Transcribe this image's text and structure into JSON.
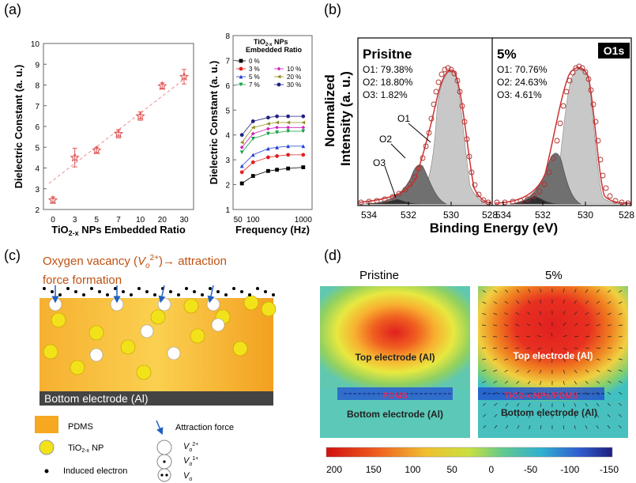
{
  "panels": {
    "a": {
      "label": "(a)",
      "left": {
        "ylabel": "Dielectric Constant (a. u.)",
        "xlabel_main": "TiO",
        "xlabel_sub": "2-x",
        "xlabel_rest": " NPs Embedded Ratio",
        "yticks": [
          "2",
          "3",
          "4",
          "5",
          "6",
          "7",
          "8",
          "9",
          "10"
        ],
        "xticks": [
          "0",
          "3",
          "5",
          "7",
          "10",
          "20",
          "30"
        ]
      },
      "right": {
        "ylabel": "Dielectric Constant (a. u.)",
        "xlabel": "Frequency (Hz)",
        "yticks": [
          "1",
          "2",
          "3",
          "4",
          "5",
          "6",
          "7",
          "8"
        ],
        "xticks": [
          "50",
          "100",
          "1000"
        ],
        "legend_title_1": "TiO",
        "legend_title_sub": "2-x",
        "legend_title_2": " NPs",
        "legend_title_3": "Embedded Ratio"
      }
    },
    "b": {
      "label": "(b)",
      "ylabel_1": "Normalized",
      "ylabel_2": "Intensity (a. u.)",
      "xlabel": "Binding Energy (eV)",
      "badge": "O1s",
      "left_title": "Prisitne",
      "left_lines": [
        "O1: 79.38%",
        "O2: 18.80%",
        "O3: 1.82%"
      ],
      "right_title": "5%",
      "right_lines": [
        "O1: 70.76%",
        "O2: 24.63%",
        "O3: 4.61%"
      ],
      "annotations": [
        "O1",
        "O2",
        "O3"
      ],
      "xticks_left": [
        "534",
        "532",
        "530",
        "528"
      ],
      "xticks_right": [
        "534",
        "532",
        "530",
        "528"
      ]
    },
    "c": {
      "label": "(c)",
      "title_1": "Oxygen vacancy (",
      "title_v": "V",
      "title_o": "o",
      "title_sup": "2+",
      "title_2": ")→ attraction",
      "title_3": "force formation",
      "bottom": "Bottom electrode (Al)",
      "legend_pdms": "PDMS",
      "legend_np": "TiO",
      "legend_np_sub": "2-x",
      "legend_np_rest": " NP",
      "legend_electron": "Induced electron",
      "legend_force": "Attraction force",
      "legend_v2": "2+",
      "legend_v1": "1+",
      "legend_v0": ""
    },
    "d": {
      "label": "(d)",
      "title_left": "Pristine",
      "title_right": "5%",
      "top_left": "Top electrode (Al)",
      "top_right": "Top electrode (Al)",
      "mid_left": "PDMS",
      "mid_right": "TiO2-x NPs/PDMS",
      "bottom_left": "Bottom electrode (Al)",
      "bottom_right": "Bottom electrode (Al)",
      "colorbar_ticks": [
        "200",
        "150",
        "100",
        "50",
        "0",
        "-50",
        "-100",
        "-150"
      ]
    }
  },
  "chart_data": [
    {
      "type": "scatter",
      "panel": "a-left",
      "xlabel": "TiO2-x NPs Embedded Ratio",
      "ylabel": "Dielectric Constant (a. u.)",
      "categories": [
        "0",
        "3",
        "5",
        "7",
        "10",
        "20",
        "30"
      ],
      "values": [
        2.45,
        4.5,
        4.85,
        5.65,
        6.5,
        7.95,
        8.4
      ],
      "errors": [
        0.15,
        0.45,
        0.15,
        0.2,
        0.2,
        0.15,
        0.35
      ],
      "ylim": [
        2,
        10
      ],
      "color": "#e05555"
    },
    {
      "type": "line",
      "panel": "a-right",
      "xlabel": "Frequency (Hz)",
      "ylabel": "Dielectric Constant (a. u.)",
      "x": [
        60,
        100,
        200,
        300,
        500,
        1000
      ],
      "xscale": "log",
      "ylim": [
        1,
        8
      ],
      "series": [
        {
          "name": "0 %",
          "color": "#000000",
          "marker": "square",
          "values": [
            2.05,
            2.35,
            2.55,
            2.6,
            2.65,
            2.7
          ]
        },
        {
          "name": "3 %",
          "color": "#e02020",
          "marker": "circle",
          "values": [
            2.5,
            2.9,
            3.1,
            3.15,
            3.2,
            3.2
          ]
        },
        {
          "name": "5 %",
          "color": "#2040d0",
          "marker": "triangle",
          "values": [
            2.75,
            3.2,
            3.45,
            3.5,
            3.55,
            3.55
          ]
        },
        {
          "name": "7 %",
          "color": "#10a040",
          "marker": "triangle-down",
          "values": [
            3.3,
            3.85,
            4.05,
            4.1,
            4.15,
            4.15
          ]
        },
        {
          "name": "10 %",
          "color": "#d020c0",
          "marker": "diamond",
          "values": [
            3.5,
            4.05,
            4.25,
            4.3,
            4.3,
            4.3
          ]
        },
        {
          "name": "20 %",
          "color": "#909020",
          "marker": "triangle-left",
          "values": [
            3.7,
            4.3,
            4.45,
            4.5,
            4.5,
            4.5
          ]
        },
        {
          "name": "30 %",
          "color": "#202080",
          "marker": "hexagon",
          "values": [
            4.0,
            4.55,
            4.7,
            4.75,
            4.75,
            4.75
          ]
        }
      ]
    },
    {
      "type": "line",
      "panel": "b",
      "xlabel": "Binding Energy (eV)",
      "ylabel": "Normalized Intensity (a. u.)",
      "subplots": [
        {
          "title": "Prisitne",
          "x": [
            534,
            533.5,
            533,
            532.5,
            532,
            531.5,
            531,
            530.5,
            530,
            529.5,
            529,
            528.5,
            528
          ],
          "values": [
            0.02,
            0.05,
            0.1,
            0.22,
            0.42,
            0.8,
            1.0,
            0.7,
            0.2,
            0.04,
            0.01,
            0.0,
            0.0
          ]
        },
        {
          "title": "5%",
          "x": [
            534,
            533.5,
            533,
            532.5,
            532,
            531.5,
            531,
            530.5,
            530,
            529.5,
            529,
            528.5,
            528
          ],
          "values": [
            0.02,
            0.04,
            0.08,
            0.2,
            0.45,
            0.82,
            1.0,
            0.65,
            0.18,
            0.03,
            0.01,
            0.0,
            0.0
          ]
        }
      ]
    }
  ]
}
